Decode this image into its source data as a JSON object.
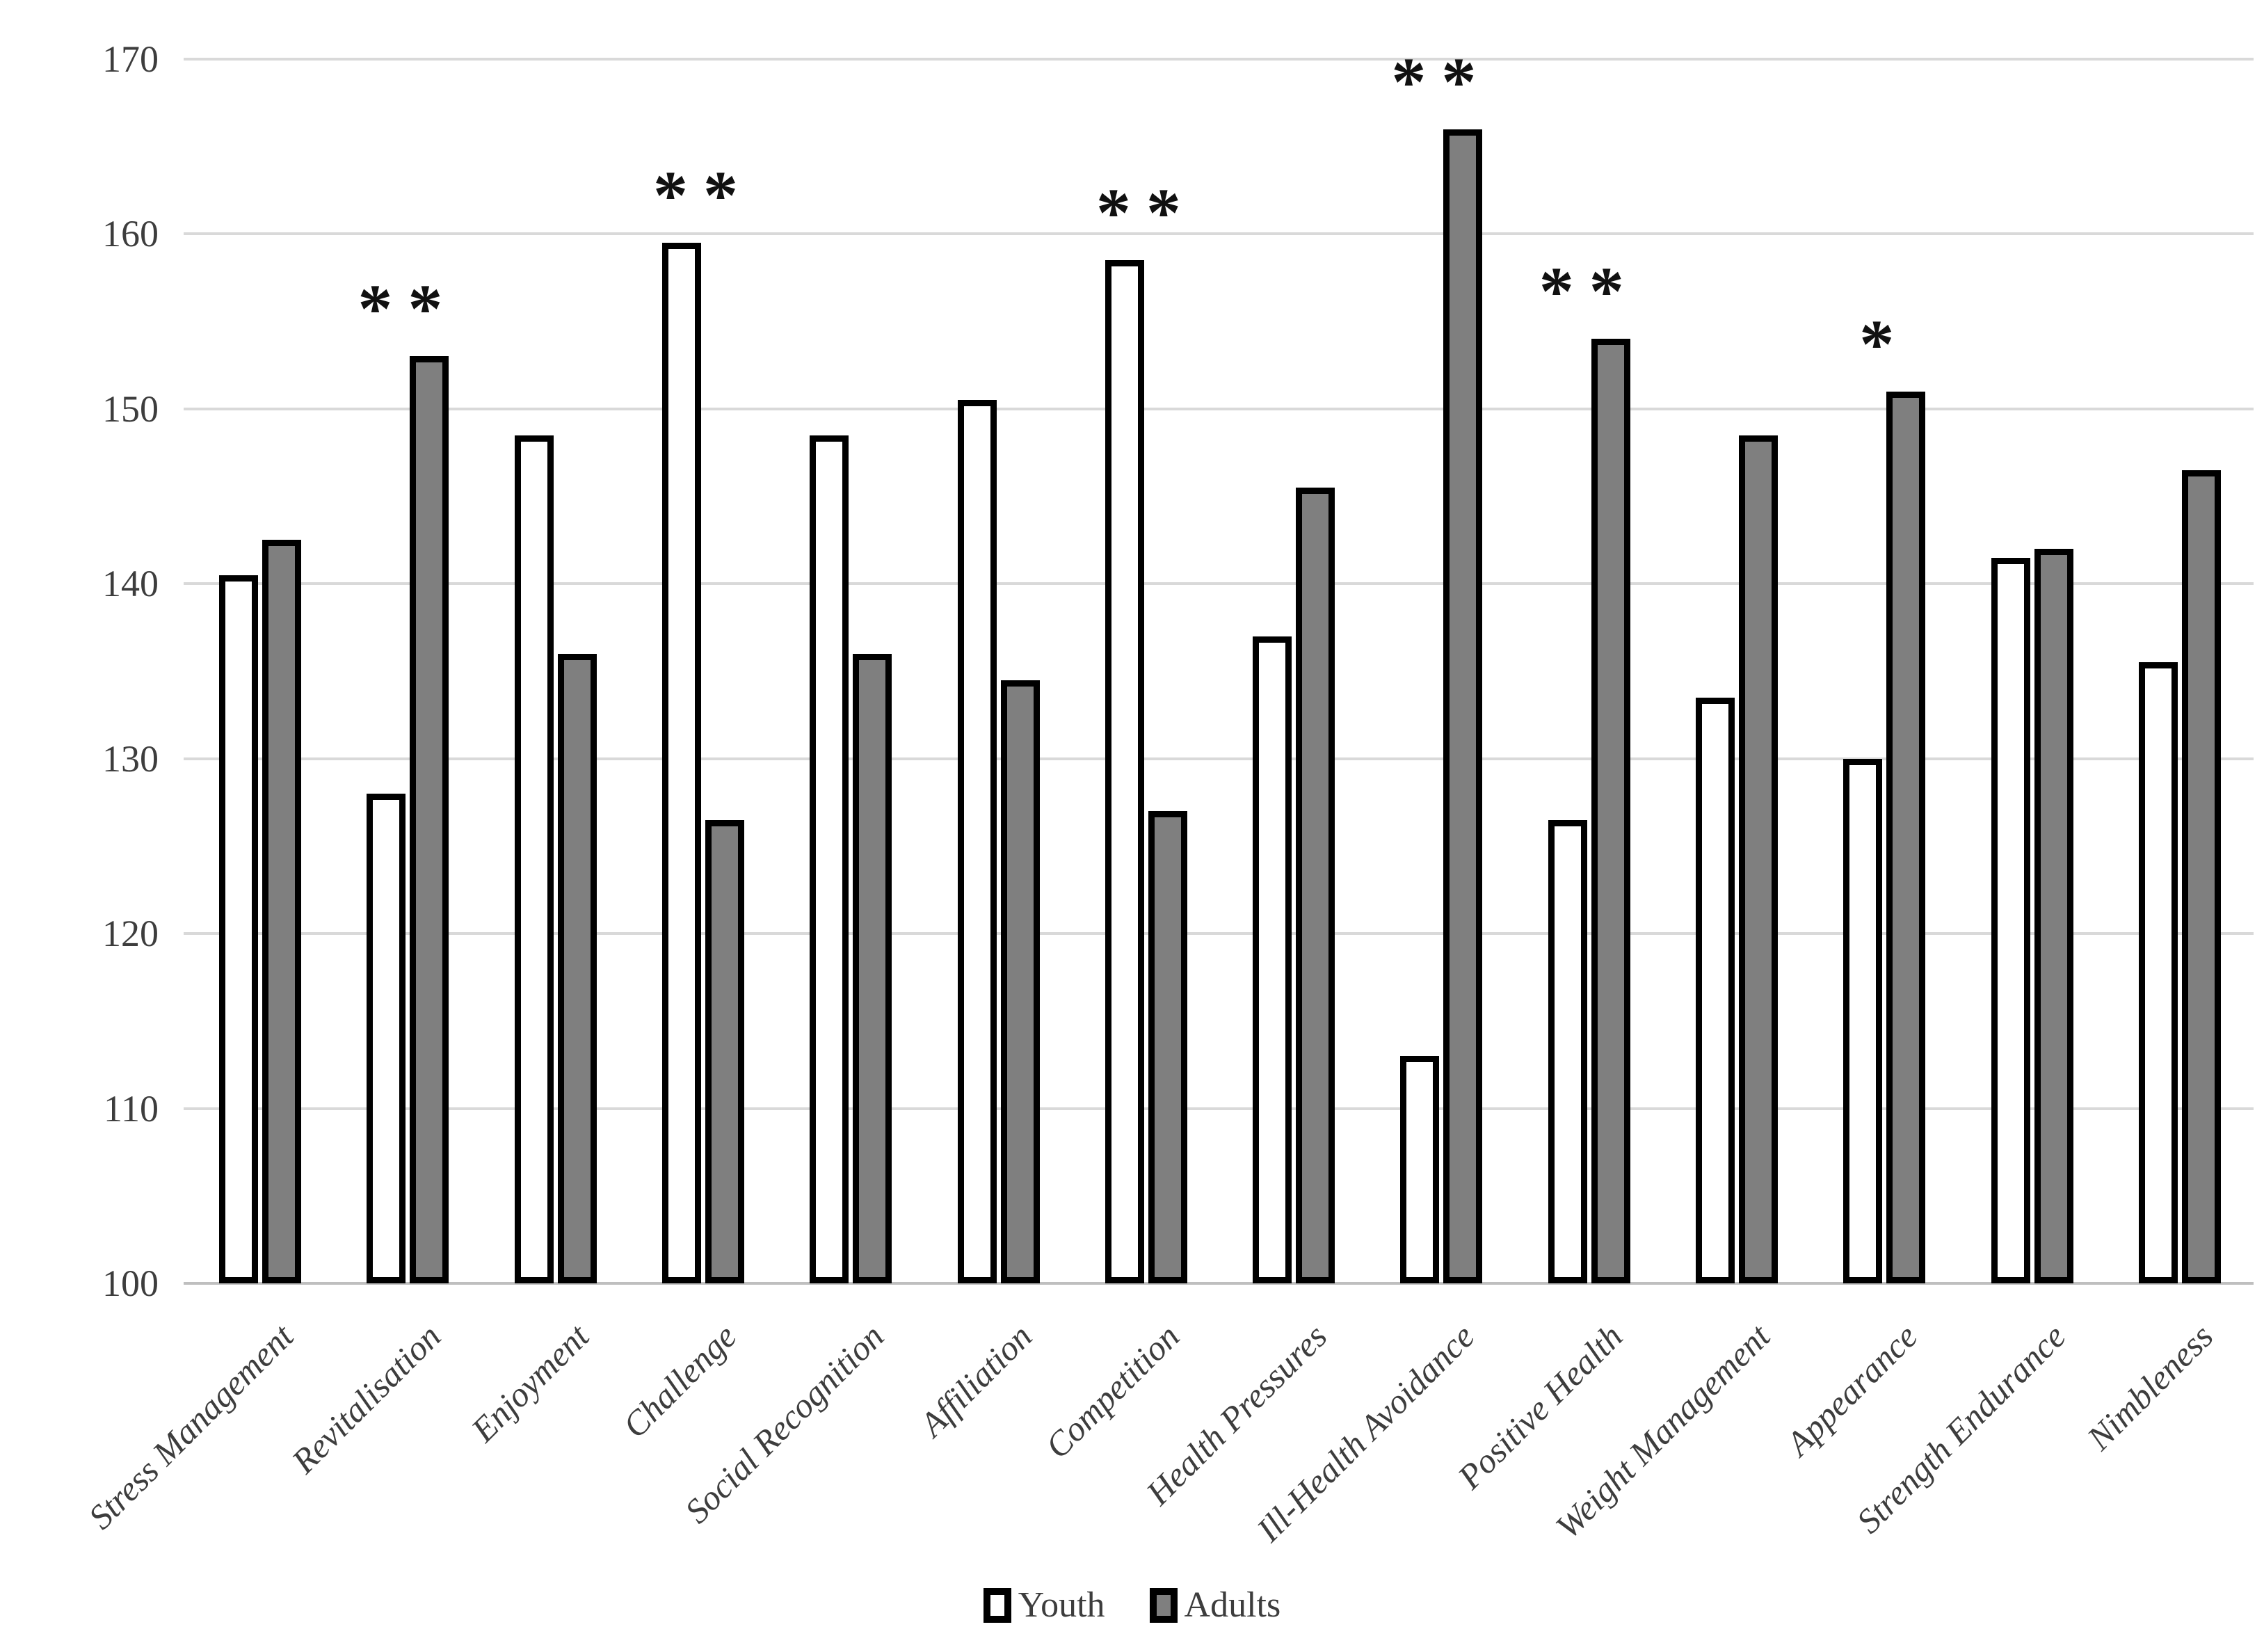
{
  "chart_data": {
    "type": "bar",
    "title": "",
    "xlabel": "",
    "ylabel": "",
    "categories": [
      "Stress Management",
      "Revitalisation",
      "Enjoyment",
      "Challenge",
      "Social Recognition",
      "Affiliation",
      "Competition",
      "Health Pressures",
      "Ill-Health Avoidance",
      "Positive Health",
      "Weight Management",
      "Appearance",
      "Strength Endurance",
      "Nimbleness"
    ],
    "series": [
      {
        "name": "Youth",
        "fill": "#ffffff",
        "values": [
          140.5,
          128,
          148.5,
          159.5,
          148.5,
          150.5,
          158.5,
          137,
          113,
          126.5,
          133.5,
          130,
          141.5,
          135.5
        ]
      },
      {
        "name": "Adults",
        "fill": "#7f7f7f",
        "values": [
          142.5,
          153,
          136,
          126.5,
          136,
          134.5,
          127,
          145.5,
          166,
          154,
          148.5,
          151,
          142,
          146.5
        ]
      }
    ],
    "significance": [
      "",
      "**",
      "",
      "**",
      "",
      "",
      "**",
      "",
      "**",
      "**",
      "",
      "*",
      "",
      ""
    ],
    "ylim": [
      100,
      170
    ],
    "yticks": [
      100,
      110,
      120,
      130,
      140,
      150,
      160,
      170
    ],
    "grid": true,
    "legend_position": "bottom",
    "colors": {
      "youth_fill": "#ffffff",
      "adults_fill": "#7f7f7f",
      "bar_border": "#000000",
      "gridline": "#d9d9d9",
      "axis_line": "#bfbfbf",
      "label_text": "#3d3d3d",
      "significance_text": "#111111"
    }
  }
}
